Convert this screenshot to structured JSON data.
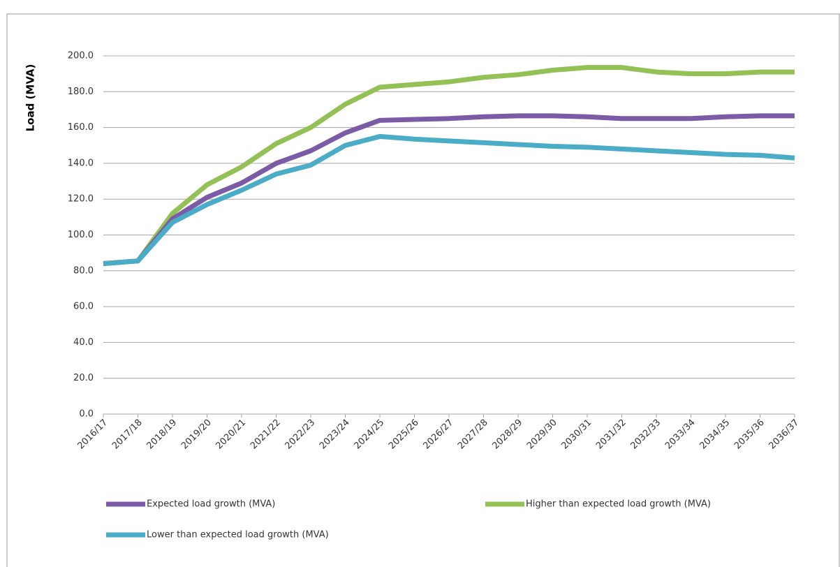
{
  "chart_data": {
    "type": "line",
    "y_label": "Load (MVA)",
    "categories": [
      "2016/17",
      "2017/18",
      "2018/19",
      "2019/20",
      "2020/21",
      "2021/22",
      "2022/23",
      "2023/24",
      "2024/25",
      "2025/26",
      "2026/27",
      "2027/28",
      "2028/29",
      "2029/30",
      "2030/31",
      "2031/32",
      "2032/33",
      "2033/34",
      "2034/35",
      "2035/36",
      "2036/37"
    ],
    "series": [
      {
        "name": "Expected load growth (MVA)",
        "color": "#7b5ba6",
        "values": [
          84,
          85.5,
          109,
          121,
          129,
          140,
          147,
          157,
          164,
          164.5,
          165,
          166,
          166.5,
          166.5,
          166,
          165,
          165,
          165,
          166,
          166.5,
          166.5
        ]
      },
      {
        "name": "Higher than expected load growth (MVA)",
        "color": "#93c155",
        "values": [
          84,
          85.5,
          112,
          128,
          138,
          151,
          160,
          173,
          182.5,
          184,
          185.5,
          188,
          189.5,
          192,
          193.5,
          193.5,
          191,
          190,
          190,
          191,
          191
        ]
      },
      {
        "name": "Lower than expected load growth (MVA)",
        "color": "#4aacc6",
        "values": [
          84,
          85.5,
          107,
          117,
          125,
          134,
          139,
          150,
          155,
          153.5,
          152.5,
          151.5,
          150.5,
          149.5,
          149,
          148,
          147,
          146,
          145,
          144.5,
          143
        ]
      }
    ],
    "ylim": [
      0,
      200
    ],
    "yticks": [
      {
        "value": 0,
        "label": "0.0"
      },
      {
        "value": 20,
        "label": "20.0"
      },
      {
        "value": 40,
        "label": "40.0"
      },
      {
        "value": 60,
        "label": "60.0"
      },
      {
        "value": 80,
        "label": "80.0"
      },
      {
        "value": 100,
        "label": "100.0"
      },
      {
        "value": 120,
        "label": "120.0"
      },
      {
        "value": 140,
        "label": "140.0"
      },
      {
        "value": 160,
        "label": "160.0"
      },
      {
        "value": 180,
        "label": "180.0"
      },
      {
        "value": 200,
        "label": "200.0"
      }
    ],
    "grid": true,
    "legend": "bottom"
  }
}
